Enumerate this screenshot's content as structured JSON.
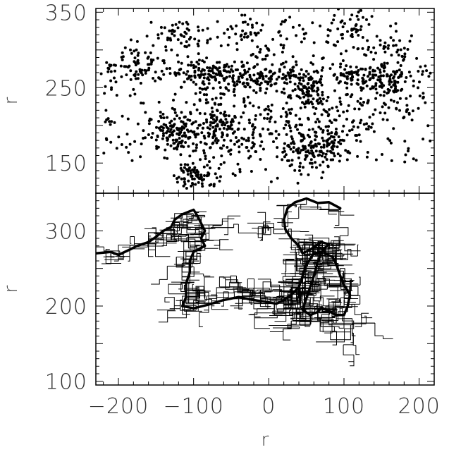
{
  "chart_data": [
    {
      "panel": "top",
      "type": "scatter",
      "title": "",
      "xlabel": "",
      "ylabel": "r",
      "xlim": [
        -230,
        220
      ],
      "ylim": [
        110,
        355
      ],
      "xticks": [
        -200,
        -100,
        0,
        100,
        200
      ],
      "yticks": [
        150,
        250,
        350
      ],
      "ytick_labels": [
        "150",
        "250",
        "350"
      ],
      "grid": false,
      "legend": "none",
      "series": [
        {
          "marker": "dot",
          "color": "#000000",
          "clusters": [
            {
              "x": -120,
              "y": 190,
              "spread": [
                30,
                18
              ],
              "n": 140
            },
            {
              "x": -95,
              "y": 135,
              "spread": [
                22,
                16
              ],
              "n": 80
            },
            {
              "x": -70,
              "y": 200,
              "spread": [
                18,
                15
              ],
              "n": 70
            },
            {
              "x": -45,
              "y": 180,
              "spread": [
                35,
                20
              ],
              "n": 60
            },
            {
              "x": -90,
              "y": 270,
              "spread": [
                35,
                12
              ],
              "n": 90
            },
            {
              "x": 0,
              "y": 265,
              "spread": [
                55,
                12
              ],
              "n": 140
            },
            {
              "x": 50,
              "y": 240,
              "spread": [
                20,
                15
              ],
              "n": 60
            },
            {
              "x": 50,
              "y": 165,
              "spread": [
                30,
                15
              ],
              "n": 90
            },
            {
              "x": 85,
              "y": 180,
              "spread": [
                25,
                15
              ],
              "n": 60
            },
            {
              "x": 130,
              "y": 265,
              "spread": [
                50,
                12
              ],
              "n": 110
            },
            {
              "x": 165,
              "y": 255,
              "spread": [
                15,
                25
              ],
              "n": 50
            },
            {
              "x": -170,
              "y": 280,
              "spread": [
                35,
                20
              ],
              "n": 60
            },
            {
              "x": -120,
              "y": 320,
              "spread": [
                25,
                15
              ],
              "n": 40
            },
            {
              "x": 110,
              "y": 330,
              "spread": [
                25,
                18
              ],
              "n": 45
            },
            {
              "x": -60,
              "y": 250,
              "spread": [
                30,
                30
              ],
              "n": 60
            },
            {
              "x": 20,
              "y": 210,
              "spread": [
                40,
                30
              ],
              "n": 60
            },
            {
              "x": -20,
              "y": 320,
              "spread": [
                50,
                18
              ],
              "n": 60
            },
            {
              "x": 160,
              "y": 300,
              "spread": [
                40,
                20
              ],
              "n": 40
            },
            {
              "x": 100,
              "y": 215,
              "spread": [
                50,
                35
              ],
              "n": 80
            }
          ],
          "sparse_fraction": 0.25
        }
      ]
    },
    {
      "panel": "bottom",
      "type": "line",
      "title": "",
      "xlabel": "r",
      "ylabel": "r",
      "xlim": [
        -230,
        220
      ],
      "ylim": [
        95,
        350
      ],
      "xticks": [
        -200,
        -100,
        0,
        100,
        200
      ],
      "xtick_labels": [
        "−200",
        "−100",
        "0",
        "100",
        "200"
      ],
      "yticks": [
        100,
        200,
        300
      ],
      "ytick_labels": [
        "100",
        "200",
        "300"
      ],
      "grid": false,
      "legend": "none",
      "series": [
        {
          "name": "",
          "style": "thick",
          "color": "#000000",
          "points": [
            [
              -230,
              270
            ],
            [
              -210,
              272
            ],
            [
              -200,
              268
            ],
            [
              -185,
              275
            ],
            [
              -175,
              280
            ],
            [
              -160,
              285
            ],
            [
              -150,
              292
            ],
            [
              -140,
              300
            ],
            [
              -130,
              305
            ],
            [
              -125,
              315
            ],
            [
              -115,
              322
            ],
            [
              -100,
              328
            ],
            [
              -95,
              320
            ],
            [
              -90,
              310
            ],
            [
              -85,
              300
            ],
            [
              -90,
              290
            ],
            [
              -85,
              280
            ],
            [
              -100,
              272
            ],
            [
              -105,
              260
            ],
            [
              -105,
              245
            ],
            [
              -110,
              230
            ],
            [
              -110,
              212
            ],
            [
              -115,
              200
            ],
            [
              -100,
              197
            ],
            [
              -80,
              202
            ],
            [
              -60,
              208
            ],
            [
              -40,
              212
            ],
            [
              -20,
              208
            ],
            [
              0,
              205
            ],
            [
              10,
              203
            ],
            [
              20,
              208
            ],
            [
              30,
              215
            ],
            [
              40,
              225
            ],
            [
              45,
              240
            ],
            [
              50,
              255
            ],
            [
              60,
              270
            ],
            [
              70,
              272
            ],
            [
              65,
              258
            ],
            [
              60,
              240
            ],
            [
              55,
              225
            ],
            [
              50,
              210
            ],
            [
              45,
              195
            ],
            [
              55,
              188
            ],
            [
              65,
              192
            ],
            [
              70,
              198
            ],
            [
              80,
              193
            ],
            [
              90,
              188
            ],
            [
              100,
              188
            ],
            [
              105,
              200
            ],
            [
              108,
              215
            ],
            [
              100,
              228
            ],
            [
              95,
              240
            ],
            [
              90,
              255
            ],
            [
              85,
              265
            ],
            [
              75,
              270
            ],
            [
              72,
              275
            ],
            [
              80,
              282
            ],
            [
              70,
              285
            ],
            [
              55,
              275
            ],
            [
              45,
              270
            ],
            [
              40,
              280
            ],
            [
              30,
              290
            ],
            [
              22,
              302
            ],
            [
              20,
              315
            ],
            [
              25,
              330
            ],
            [
              35,
              338
            ],
            [
              50,
              343
            ],
            [
              65,
              337
            ],
            [
              80,
              338
            ],
            [
              95,
              330
            ]
          ]
        }
      ],
      "tree": {
        "style": "thin",
        "color": "#000000",
        "nodes": 900
      }
    }
  ]
}
